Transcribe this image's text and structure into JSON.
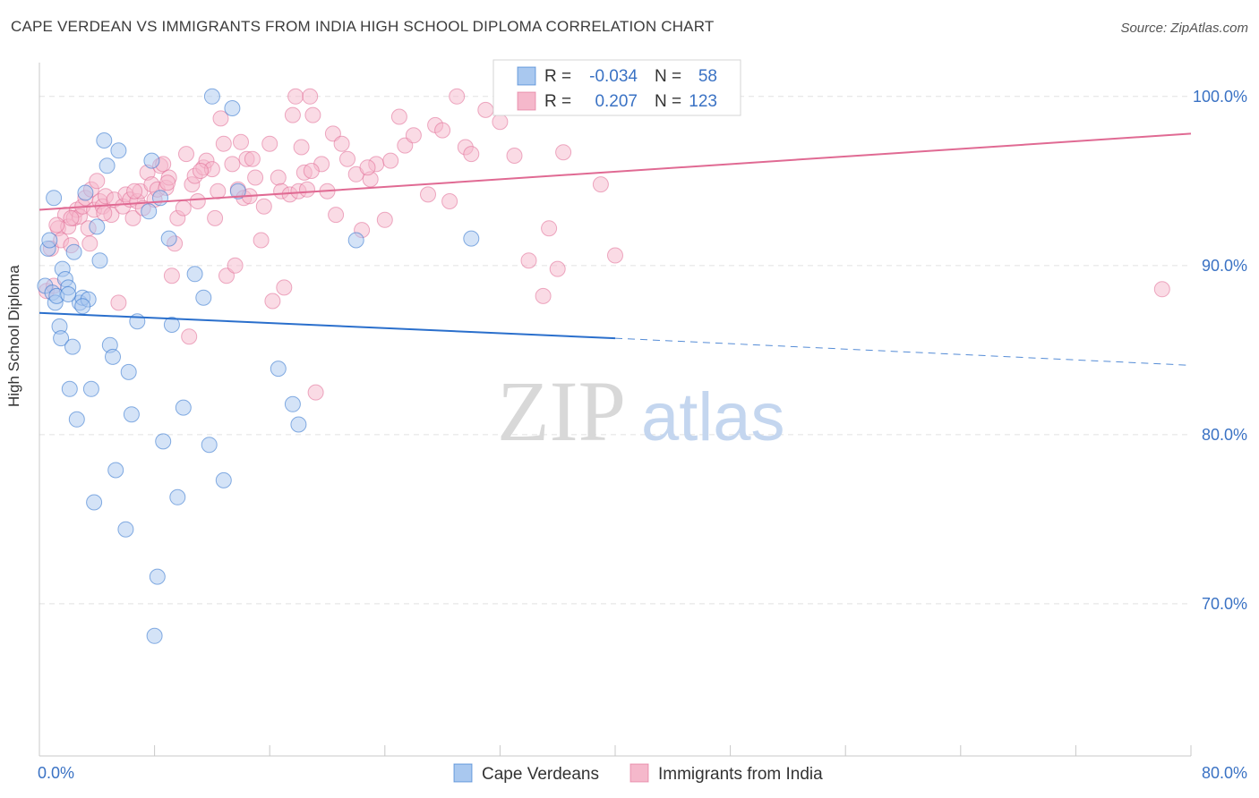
{
  "header": {
    "title": "CAPE VERDEAN VS IMMIGRANTS FROM INDIA HIGH SCHOOL DIPLOMA CORRELATION CHART",
    "source": "Source: ZipAtlas.com"
  },
  "watermark": {
    "zip": "ZIP",
    "atlas": "atlas"
  },
  "colors": {
    "blue_point": "#a9c8ef",
    "blue_line": "#2a6fcc",
    "pink_point": "#f5b8cb",
    "pink_line": "#e06a93",
    "value_text": "#3a72c4",
    "grid": "#e1e1e1"
  },
  "chart_data": {
    "type": "scatter",
    "title": "CAPE VERDEAN VS IMMIGRANTS FROM INDIA HIGH SCHOOL DIPLOMA CORRELATION CHART",
    "xlabel": "",
    "ylabel": "High School Diploma",
    "xlim": [
      0,
      80
    ],
    "ylim": [
      61,
      102
    ],
    "x_tick_labels": [
      {
        "value": 0,
        "label": "0.0%"
      },
      {
        "value": 80,
        "label": "80.0%"
      }
    ],
    "y_tick_labels": [
      {
        "value": 100,
        "label": "100.0%"
      },
      {
        "value": 90,
        "label": "90.0%"
      },
      {
        "value": 80,
        "label": "80.0%"
      },
      {
        "value": 70,
        "label": "70.0%"
      }
    ],
    "legend": {
      "position": "top-center",
      "entries": [
        {
          "series": "Cape Verdeans",
          "r_label": "R =",
          "r_value": "-0.034",
          "n_label": "N =",
          "n_value": "58"
        },
        {
          "series": "Immigrants from India",
          "r_label": "R =",
          "r_value": "0.207",
          "n_label": "N =",
          "n_value": "123"
        }
      ]
    },
    "bottom_legend": [
      "Cape Verdeans",
      "Immigrants from India"
    ],
    "series": [
      {
        "name": "Cape Verdeans",
        "color": "#a9c8ef",
        "trend": {
          "x0": 0,
          "y0": 87.2,
          "x1": 40,
          "y1": 85.7,
          "dashed_to_x": 80,
          "dashed_to_y": 84.1
        },
        "points": [
          [
            0.4,
            88.8
          ],
          [
            0.6,
            91.0
          ],
          [
            0.7,
            91.5
          ],
          [
            0.9,
            88.4
          ],
          [
            1.0,
            94.0
          ],
          [
            1.1,
            87.8
          ],
          [
            1.2,
            88.2
          ],
          [
            1.4,
            86.4
          ],
          [
            1.5,
            85.7
          ],
          [
            1.6,
            89.8
          ],
          [
            1.8,
            89.2
          ],
          [
            2.0,
            88.7
          ],
          [
            2.1,
            82.7
          ],
          [
            2.3,
            85.2
          ],
          [
            2.4,
            90.8
          ],
          [
            2.6,
            80.9
          ],
          [
            2.8,
            87.8
          ],
          [
            3.0,
            88.1
          ],
          [
            3.2,
            94.3
          ],
          [
            3.4,
            88.0
          ],
          [
            3.6,
            82.7
          ],
          [
            3.8,
            76.0
          ],
          [
            4.0,
            92.3
          ],
          [
            4.2,
            90.3
          ],
          [
            4.5,
            97.4
          ],
          [
            4.7,
            95.9
          ],
          [
            4.9,
            85.3
          ],
          [
            5.1,
            84.6
          ],
          [
            5.3,
            77.9
          ],
          [
            5.5,
            96.8
          ],
          [
            6.0,
            74.4
          ],
          [
            6.2,
            83.7
          ],
          [
            6.4,
            81.2
          ],
          [
            6.8,
            86.7
          ],
          [
            7.6,
            93.2
          ],
          [
            7.8,
            96.2
          ],
          [
            8.0,
            68.1
          ],
          [
            8.2,
            71.6
          ],
          [
            8.4,
            94.0
          ],
          [
            8.6,
            79.6
          ],
          [
            9.0,
            91.6
          ],
          [
            9.2,
            86.5
          ],
          [
            9.6,
            76.3
          ],
          [
            10.0,
            81.6
          ],
          [
            10.8,
            89.5
          ],
          [
            11.4,
            88.1
          ],
          [
            11.8,
            79.4
          ],
          [
            12.0,
            100.0
          ],
          [
            12.8,
            77.3
          ],
          [
            13.4,
            99.3
          ],
          [
            13.8,
            94.4
          ],
          [
            16.6,
            83.9
          ],
          [
            17.6,
            81.8
          ],
          [
            18.0,
            80.6
          ],
          [
            22.0,
            91.5
          ],
          [
            30.0,
            91.6
          ],
          [
            2.0,
            88.3
          ],
          [
            3.0,
            87.6
          ]
        ]
      },
      {
        "name": "Immigrants from India",
        "color": "#f5b8cb",
        "trend": {
          "x0": 0,
          "y0": 93.3,
          "x1": 80,
          "y1": 97.8
        },
        "points": [
          [
            0.5,
            88.5
          ],
          [
            0.8,
            91.0
          ],
          [
            1.0,
            88.8
          ],
          [
            1.3,
            92.2
          ],
          [
            1.5,
            91.5
          ],
          [
            1.8,
            93.0
          ],
          [
            2.0,
            92.3
          ],
          [
            2.2,
            91.2
          ],
          [
            2.4,
            92.8
          ],
          [
            2.6,
            93.3
          ],
          [
            2.8,
            92.9
          ],
          [
            3.0,
            93.5
          ],
          [
            3.2,
            94.0
          ],
          [
            3.4,
            92.2
          ],
          [
            3.6,
            94.5
          ],
          [
            3.8,
            93.3
          ],
          [
            4.0,
            95.0
          ],
          [
            4.2,
            93.8
          ],
          [
            4.4,
            93.5
          ],
          [
            4.6,
            94.1
          ],
          [
            5.0,
            93.0
          ],
          [
            5.2,
            93.9
          ],
          [
            5.5,
            87.8
          ],
          [
            5.8,
            93.5
          ],
          [
            6.0,
            94.2
          ],
          [
            6.3,
            93.9
          ],
          [
            6.5,
            92.8
          ],
          [
            6.8,
            93.8
          ],
          [
            7.0,
            94.4
          ],
          [
            7.2,
            93.4
          ],
          [
            7.5,
            95.5
          ],
          [
            7.8,
            94.8
          ],
          [
            8.0,
            93.9
          ],
          [
            8.2,
            94.5
          ],
          [
            8.4,
            95.9
          ],
          [
            8.6,
            96.0
          ],
          [
            8.8,
            94.6
          ],
          [
            9.0,
            95.2
          ],
          [
            9.2,
            89.4
          ],
          [
            9.4,
            91.3
          ],
          [
            9.6,
            92.8
          ],
          [
            10.0,
            93.4
          ],
          [
            10.2,
            96.6
          ],
          [
            10.4,
            85.8
          ],
          [
            10.6,
            94.8
          ],
          [
            10.8,
            95.3
          ],
          [
            11.0,
            93.8
          ],
          [
            11.4,
            95.8
          ],
          [
            11.6,
            96.2
          ],
          [
            12.0,
            95.7
          ],
          [
            12.2,
            92.8
          ],
          [
            12.4,
            94.4
          ],
          [
            12.6,
            98.7
          ],
          [
            12.8,
            97.2
          ],
          [
            13.0,
            89.4
          ],
          [
            13.4,
            96.0
          ],
          [
            13.6,
            90.0
          ],
          [
            13.8,
            94.5
          ],
          [
            14.0,
            97.3
          ],
          [
            14.2,
            94.0
          ],
          [
            14.4,
            96.3
          ],
          [
            14.8,
            96.3
          ],
          [
            15.0,
            95.2
          ],
          [
            15.4,
            91.5
          ],
          [
            15.6,
            93.5
          ],
          [
            16.0,
            97.2
          ],
          [
            16.2,
            87.9
          ],
          [
            16.6,
            95.2
          ],
          [
            16.8,
            94.4
          ],
          [
            17.0,
            88.7
          ],
          [
            17.4,
            94.2
          ],
          [
            17.6,
            98.9
          ],
          [
            17.8,
            100.0
          ],
          [
            18.0,
            94.4
          ],
          [
            18.2,
            97.0
          ],
          [
            18.4,
            95.5
          ],
          [
            18.6,
            94.5
          ],
          [
            18.8,
            100.0
          ],
          [
            19.0,
            98.9
          ],
          [
            19.2,
            82.5
          ],
          [
            19.6,
            96.0
          ],
          [
            20.0,
            94.4
          ],
          [
            20.4,
            97.8
          ],
          [
            20.6,
            93.0
          ],
          [
            21.0,
            97.2
          ],
          [
            21.4,
            96.3
          ],
          [
            22.0,
            95.4
          ],
          [
            22.4,
            92.1
          ],
          [
            23.0,
            95.1
          ],
          [
            23.4,
            96.0
          ],
          [
            24.0,
            92.7
          ],
          [
            24.4,
            96.2
          ],
          [
            25.0,
            98.8
          ],
          [
            25.4,
            97.1
          ],
          [
            26.0,
            97.7
          ],
          [
            27.0,
            94.2
          ],
          [
            27.5,
            98.3
          ],
          [
            28.0,
            98.0
          ],
          [
            28.5,
            93.8
          ],
          [
            29.0,
            100.0
          ],
          [
            29.6,
            97.0
          ],
          [
            30.0,
            96.6
          ],
          [
            31.0,
            99.2
          ],
          [
            32.0,
            98.5
          ],
          [
            33.0,
            96.5
          ],
          [
            34.0,
            90.3
          ],
          [
            35.0,
            88.2
          ],
          [
            35.4,
            92.2
          ],
          [
            36.0,
            89.8
          ],
          [
            36.4,
            96.7
          ],
          [
            39.0,
            94.8
          ],
          [
            40.0,
            90.6
          ],
          [
            78.0,
            88.6
          ],
          [
            2.2,
            92.8
          ],
          [
            4.5,
            93.1
          ],
          [
            6.6,
            94.4
          ],
          [
            8.9,
            94.9
          ],
          [
            11.2,
            95.6
          ],
          [
            14.6,
            94.1
          ],
          [
            18.9,
            95.6
          ],
          [
            22.8,
            95.8
          ],
          [
            3.5,
            91.3
          ],
          [
            1.2,
            92.4
          ]
        ]
      }
    ]
  }
}
